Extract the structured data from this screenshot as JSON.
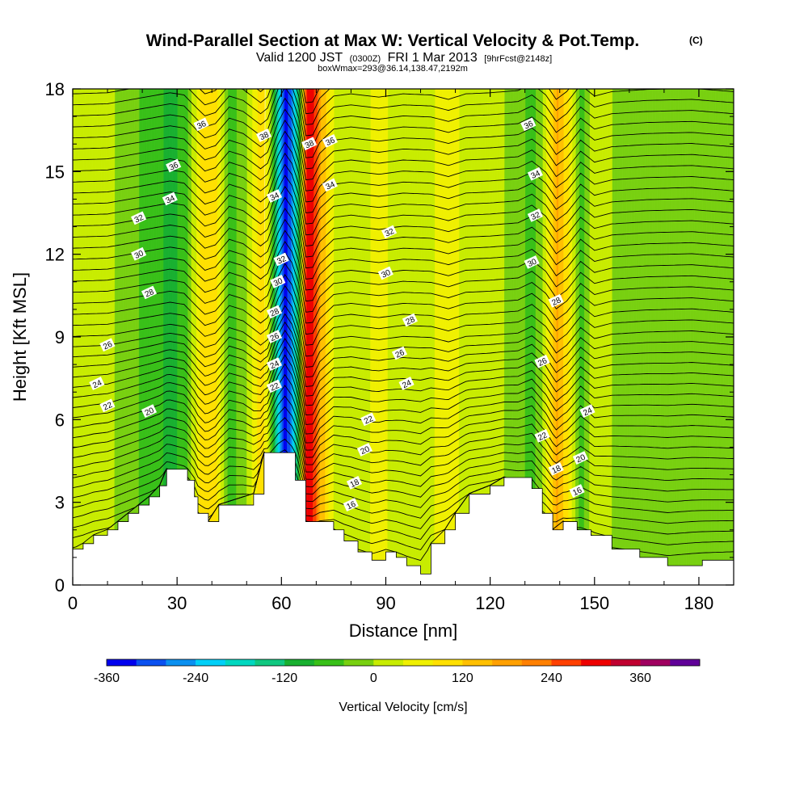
{
  "title": {
    "main": "Wind-Parallel Section at Max W: Vertical Velocity & Pot.Temp.",
    "copyright": "(C)",
    "valid_pre": "Valid 1200 JST",
    "valid_utc": "(0300Z)",
    "valid_date": "FRI 1 Mar 2013",
    "forecast": "[9hrFcst@2148z]",
    "box": "boxWmax=293@36.14,138.47,2192m"
  },
  "chart_data": {
    "type": "heatmap",
    "xlabel": "Distance [nm]",
    "ylabel": "Height [Kft MSL]",
    "xlim": [
      0,
      190
    ],
    "ylim": [
      0,
      18
    ],
    "x_ticks": [
      "0",
      "30",
      "60",
      "90",
      "120",
      "150",
      "180"
    ],
    "y_ticks": [
      "0",
      "3",
      "6",
      "9",
      "12",
      "15",
      "18"
    ],
    "colorbar": {
      "label": "Vertical Velocity [cm/s]",
      "tick_labels": [
        "-360",
        "-240",
        "-120",
        "0",
        "120",
        "240",
        "360"
      ],
      "levels": [
        -360,
        -320,
        -280,
        -240,
        -200,
        -160,
        -120,
        -80,
        -40,
        0,
        40,
        80,
        120,
        160,
        200,
        240,
        280,
        320,
        360,
        400
      ],
      "colors": [
        "#0000ee",
        "#0a50f0",
        "#0a90f0",
        "#00d0f8",
        "#00d8c0",
        "#10c880",
        "#18b030",
        "#38c018",
        "#78d010",
        "#c8ec00",
        "#f0f000",
        "#ffe000",
        "#ffc000",
        "#ffa000",
        "#ff8000",
        "#ff4000",
        "#ee0000",
        "#c00030",
        "#a00060",
        "#600098"
      ]
    },
    "vertical_velocity_bands": [
      {
        "x": 0,
        "w": 20
      },
      {
        "x": 10,
        "w": 10
      },
      {
        "x": 28,
        "w": -90
      },
      {
        "x": 32,
        "w": -70
      },
      {
        "x": 36,
        "w": 60
      },
      {
        "x": 38,
        "w": 120
      },
      {
        "x": 41,
        "w": 90
      },
      {
        "x": 45,
        "w": -60
      },
      {
        "x": 49,
        "w": -20
      },
      {
        "x": 54,
        "w": 100
      },
      {
        "x": 56,
        "w": 50
      },
      {
        "x": 59,
        "w": -220
      },
      {
        "x": 61,
        "w": -340
      },
      {
        "x": 63,
        "w": -250
      },
      {
        "x": 65,
        "w": -60
      },
      {
        "x": 67,
        "w": 300
      },
      {
        "x": 69,
        "w": 293
      },
      {
        "x": 71,
        "w": 160
      },
      {
        "x": 75,
        "w": 40
      },
      {
        "x": 80,
        "w": 20
      },
      {
        "x": 88,
        "w": 50
      },
      {
        "x": 95,
        "w": 20
      },
      {
        "x": 103,
        "w": 30
      },
      {
        "x": 108,
        "w": 70
      },
      {
        "x": 113,
        "w": 20
      },
      {
        "x": 120,
        "w": 10
      },
      {
        "x": 128,
        "w": -10
      },
      {
        "x": 132,
        "w": -70
      },
      {
        "x": 136,
        "w": 30
      },
      {
        "x": 139,
        "w": 170
      },
      {
        "x": 142,
        "w": 100
      },
      {
        "x": 146,
        "w": -60
      },
      {
        "x": 150,
        "w": 40
      },
      {
        "x": 155,
        "w": 0
      },
      {
        "x": 165,
        "w": -20
      },
      {
        "x": 178,
        "w": -30
      },
      {
        "x": 190,
        "w": 0
      }
    ],
    "terrain": [
      {
        "x": 0,
        "h": 1.3
      },
      {
        "x": 3,
        "h": 1.5
      },
      {
        "x": 6,
        "h": 1.8
      },
      {
        "x": 10,
        "h": 2.0
      },
      {
        "x": 13,
        "h": 2.3
      },
      {
        "x": 16,
        "h": 2.6
      },
      {
        "x": 19,
        "h": 2.9
      },
      {
        "x": 22,
        "h": 3.2
      },
      {
        "x": 25,
        "h": 3.6
      },
      {
        "x": 27,
        "h": 4.2
      },
      {
        "x": 33,
        "h": 3.8
      },
      {
        "x": 35,
        "h": 3.2
      },
      {
        "x": 36,
        "h": 2.6
      },
      {
        "x": 39,
        "h": 2.3
      },
      {
        "x": 42,
        "h": 2.9
      },
      {
        "x": 52,
        "h": 3.3
      },
      {
        "x": 55,
        "h": 4.8
      },
      {
        "x": 64,
        "h": 3.8
      },
      {
        "x": 67,
        "h": 2.3
      },
      {
        "x": 75,
        "h": 2.0
      },
      {
        "x": 78,
        "h": 1.6
      },
      {
        "x": 82,
        "h": 1.2
      },
      {
        "x": 86,
        "h": 0.9
      },
      {
        "x": 90,
        "h": 1.2
      },
      {
        "x": 93,
        "h": 1.0
      },
      {
        "x": 96,
        "h": 0.7
      },
      {
        "x": 100,
        "h": 0.4
      },
      {
        "x": 103,
        "h": 1.5
      },
      {
        "x": 107,
        "h": 2.0
      },
      {
        "x": 110,
        "h": 2.6
      },
      {
        "x": 114,
        "h": 3.3
      },
      {
        "x": 120,
        "h": 3.6
      },
      {
        "x": 124,
        "h": 3.9
      },
      {
        "x": 132,
        "h": 3.5
      },
      {
        "x": 135,
        "h": 2.6
      },
      {
        "x": 138,
        "h": 2.0
      },
      {
        "x": 141,
        "h": 2.3
      },
      {
        "x": 145,
        "h": 2.0
      },
      {
        "x": 149,
        "h": 1.8
      },
      {
        "x": 155,
        "h": 1.3
      },
      {
        "x": 163,
        "h": 1.0
      },
      {
        "x": 171,
        "h": 0.7
      },
      {
        "x": 181,
        "h": 0.9
      },
      {
        "x": 190,
        "h": 1.0
      }
    ],
    "potential_temperature": {
      "levels": [
        16,
        18,
        20,
        22,
        24,
        26,
        28,
        30,
        32,
        34,
        36,
        38
      ],
      "labels": [
        {
          "text": "16",
          "x": 80,
          "y": 2.9
        },
        {
          "text": "18",
          "x": 81,
          "y": 3.7
        },
        {
          "text": "20",
          "x": 84,
          "y": 4.9
        },
        {
          "text": "22",
          "x": 85,
          "y": 6.0
        },
        {
          "text": "24",
          "x": 96,
          "y": 7.3
        },
        {
          "text": "26",
          "x": 94,
          "y": 8.4
        },
        {
          "text": "28",
          "x": 97,
          "y": 9.6
        },
        {
          "text": "30",
          "x": 90,
          "y": 11.3
        },
        {
          "text": "32",
          "x": 91,
          "y": 12.8
        },
        {
          "text": "34",
          "x": 74,
          "y": 14.5
        },
        {
          "text": "36",
          "x": 74,
          "y": 16.1
        },
        {
          "text": "38",
          "x": 68,
          "y": 16.0
        },
        {
          "text": "20",
          "x": 22,
          "y": 6.3
        },
        {
          "text": "22",
          "x": 10,
          "y": 6.5
        },
        {
          "text": "24",
          "x": 7,
          "y": 7.3
        },
        {
          "text": "26",
          "x": 10,
          "y": 8.7
        },
        {
          "text": "28",
          "x": 22,
          "y": 10.6
        },
        {
          "text": "30",
          "x": 19,
          "y": 12.0
        },
        {
          "text": "32",
          "x": 19,
          "y": 13.3
        },
        {
          "text": "34",
          "x": 28,
          "y": 14.0
        },
        {
          "text": "36",
          "x": 29,
          "y": 15.2
        },
        {
          "text": "36",
          "x": 37,
          "y": 16.7
        },
        {
          "text": "38",
          "x": 55,
          "y": 16.3
        },
        {
          "text": "34",
          "x": 58,
          "y": 14.1
        },
        {
          "text": "32",
          "x": 60,
          "y": 11.8
        },
        {
          "text": "30",
          "x": 59,
          "y": 11.0
        },
        {
          "text": "28",
          "x": 58,
          "y": 9.9
        },
        {
          "text": "26",
          "x": 58,
          "y": 9.0
        },
        {
          "text": "24",
          "x": 58,
          "y": 8.0
        },
        {
          "text": "22",
          "x": 58,
          "y": 7.2
        },
        {
          "text": "36",
          "x": 131,
          "y": 16.7
        },
        {
          "text": "34",
          "x": 133,
          "y": 14.9
        },
        {
          "text": "32",
          "x": 133,
          "y": 13.4
        },
        {
          "text": "30",
          "x": 132,
          "y": 11.7
        },
        {
          "text": "28",
          "x": 139,
          "y": 10.3
        },
        {
          "text": "26",
          "x": 135,
          "y": 8.1
        },
        {
          "text": "24",
          "x": 148,
          "y": 6.3
        },
        {
          "text": "22",
          "x": 135,
          "y": 5.4
        },
        {
          "text": "20",
          "x": 146,
          "y": 4.6
        },
        {
          "text": "18",
          "x": 139,
          "y": 4.2
        },
        {
          "text": "16",
          "x": 145,
          "y": 3.4
        }
      ]
    }
  }
}
